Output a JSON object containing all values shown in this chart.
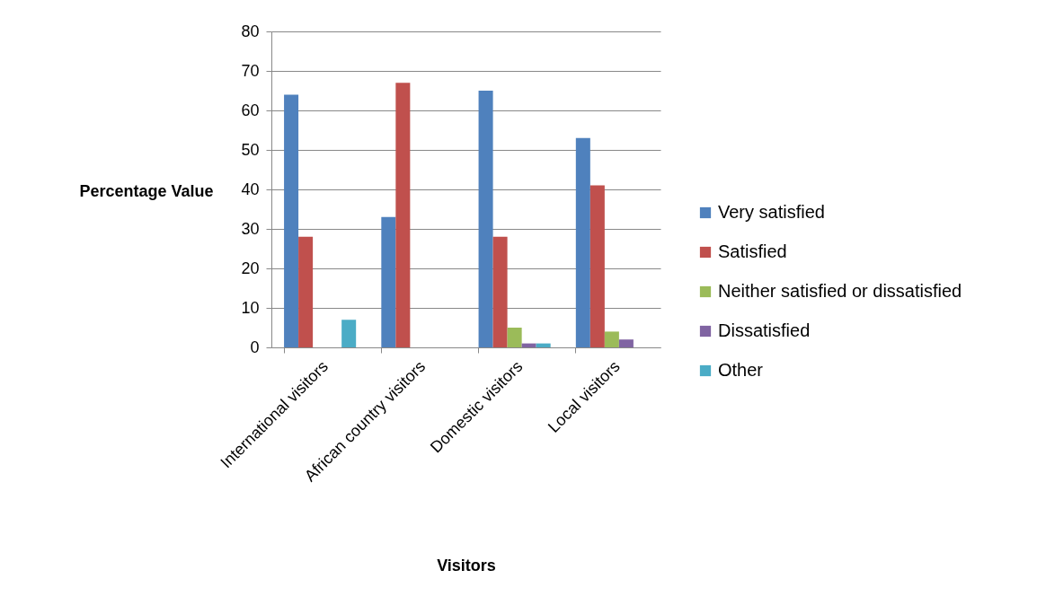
{
  "chart_data": {
    "type": "bar",
    "xlabel": "Visitors",
    "ylabel": "Percentage Value",
    "categories": [
      "International visitors",
      "African country visitors",
      "Domestic visitors",
      "Local visitors"
    ],
    "series": [
      {
        "name": "Very satisfied",
        "color": "#4f81bd",
        "values": [
          64,
          33,
          65,
          53
        ]
      },
      {
        "name": "Satisfied",
        "color": "#c0504d",
        "values": [
          28,
          67,
          28,
          41
        ]
      },
      {
        "name": "Neither satisfied or dissatisfied",
        "color": "#9bbb59",
        "values": [
          null,
          null,
          5,
          4
        ]
      },
      {
        "name": "Dissatisfied",
        "color": "#8064a2",
        "values": [
          null,
          null,
          1,
          2
        ]
      },
      {
        "name": "Other",
        "color": "#4bacc6",
        "values": [
          7,
          null,
          1,
          null
        ]
      }
    ],
    "ylim": [
      0,
      80
    ],
    "yticks": [
      0,
      10,
      20,
      30,
      40,
      50,
      60,
      70,
      80
    ],
    "grid": "y",
    "legend": "right"
  }
}
